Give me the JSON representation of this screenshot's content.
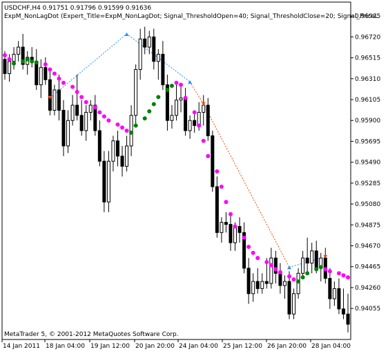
{
  "header": {
    "symbol_line": "USDCHF,H4  0.91751 0.91796 0.91599 0.91636",
    "indicator_line": "ExpM_NonLagDot (Expert_Title=ExpM_NonLagDot; Signal_ThresholdOpen=40; Signal_ThresholdClose=20; Signal_PriceL"
  },
  "footer": {
    "copyright": "MetaTrader 5, © 2001-2012 MetaQuotes Software Corp."
  },
  "colors": {
    "bull_dot": "#008000",
    "bear_dot": "#ff00ff",
    "buy_arrow": "#1e90ff",
    "sell_arrow": "#ff4500",
    "candle_bear": "#000000",
    "candle_bull": "#ffffff"
  },
  "chart_data": {
    "type": "candlestick",
    "ylim": [
      0.93954,
      0.97028
    ],
    "y_ticks": [
      "0.96925",
      "0.96720",
      "0.96515",
      "0.96310",
      "0.96105",
      "0.95900",
      "0.95695",
      "0.95490",
      "0.95285",
      "0.95080",
      "0.94875",
      "0.94670",
      "0.94465",
      "0.94260",
      "0.94055"
    ],
    "x_ticks": [
      "14 Jan 2011",
      "18 Jan 04:00",
      "19 Jan 12:00",
      "20 Jan 20:00",
      "24 Jan 04:00",
      "25 Jan 12:00",
      "26 Jan 20:00",
      "28 Jan 04:00"
    ],
    "candles": [
      [
        0.965,
        0.9658,
        0.963,
        0.9636
      ],
      [
        0.9636,
        0.9655,
        0.9628,
        0.9648
      ],
      [
        0.9648,
        0.9662,
        0.964,
        0.9655
      ],
      [
        0.9655,
        0.9668,
        0.9648,
        0.9662
      ],
      [
        0.9662,
        0.9675,
        0.964,
        0.9645
      ],
      [
        0.9645,
        0.9658,
        0.9635,
        0.9652
      ],
      [
        0.9652,
        0.9662,
        0.9642,
        0.9648
      ],
      [
        0.9648,
        0.966,
        0.962,
        0.9625
      ],
      [
        0.9625,
        0.965,
        0.9612,
        0.9642
      ],
      [
        0.9642,
        0.9652,
        0.9625,
        0.963
      ],
      [
        0.963,
        0.964,
        0.9595,
        0.96
      ],
      [
        0.96,
        0.9625,
        0.9595,
        0.962
      ],
      [
        0.962,
        0.9635,
        0.959,
        0.96
      ],
      [
        0.96,
        0.961,
        0.9555,
        0.9565
      ],
      [
        0.9565,
        0.96,
        0.9558,
        0.959
      ],
      [
        0.959,
        0.9615,
        0.9585,
        0.9605
      ],
      [
        0.9605,
        0.9635,
        0.959,
        0.9595
      ],
      [
        0.9595,
        0.961,
        0.9575,
        0.958
      ],
      [
        0.958,
        0.9605,
        0.957,
        0.9598
      ],
      [
        0.9598,
        0.961,
        0.959,
        0.9605
      ],
      [
        0.9605,
        0.9615,
        0.9575,
        0.958
      ],
      [
        0.958,
        0.959,
        0.9545,
        0.955
      ],
      [
        0.955,
        0.956,
        0.95,
        0.951
      ],
      [
        0.951,
        0.956,
        0.95,
        0.955
      ],
      [
        0.955,
        0.9575,
        0.954,
        0.957
      ],
      [
        0.957,
        0.958,
        0.9545,
        0.9555
      ],
      [
        0.9555,
        0.9565,
        0.9535,
        0.9545
      ],
      [
        0.9545,
        0.9575,
        0.954,
        0.9565
      ],
      [
        0.9565,
        0.9605,
        0.9555,
        0.9595
      ],
      [
        0.9595,
        0.9645,
        0.9585,
        0.964
      ],
      [
        0.964,
        0.968,
        0.963,
        0.967
      ],
      [
        0.967,
        0.9682,
        0.9655,
        0.9662
      ],
      [
        0.9662,
        0.9678,
        0.9655,
        0.9672
      ],
      [
        0.9672,
        0.968,
        0.964,
        0.9648
      ],
      [
        0.9648,
        0.966,
        0.963,
        0.9655
      ],
      [
        0.9655,
        0.9668,
        0.962,
        0.9625
      ],
      [
        0.9625,
        0.9635,
        0.958,
        0.959
      ],
      [
        0.959,
        0.9605,
        0.9582,
        0.9595
      ],
      [
        0.9595,
        0.9625,
        0.959,
        0.961
      ],
      [
        0.961,
        0.9625,
        0.9598,
        0.9612
      ],
      [
        0.9612,
        0.9622,
        0.9575,
        0.958
      ],
      [
        0.958,
        0.9595,
        0.9572,
        0.959
      ],
      [
        0.959,
        0.96,
        0.9578,
        0.9585
      ],
      [
        0.9585,
        0.9608,
        0.958,
        0.9598
      ],
      [
        0.9598,
        0.9615,
        0.9585,
        0.9605
      ],
      [
        0.9605,
        0.9612,
        0.957,
        0.9575
      ],
      [
        0.9575,
        0.958,
        0.952,
        0.9525
      ],
      [
        0.9525,
        0.9535,
        0.9475,
        0.948
      ],
      [
        0.948,
        0.9495,
        0.947,
        0.949
      ],
      [
        0.949,
        0.95,
        0.948,
        0.9488
      ],
      [
        0.9488,
        0.95,
        0.9462,
        0.947
      ],
      [
        0.947,
        0.949,
        0.9462,
        0.9486
      ],
      [
        0.9486,
        0.9495,
        0.947,
        0.948
      ],
      [
        0.948,
        0.949,
        0.944,
        0.9445
      ],
      [
        0.9445,
        0.9455,
        0.941,
        0.942
      ],
      [
        0.942,
        0.944,
        0.9412,
        0.9432
      ],
      [
        0.9432,
        0.9445,
        0.942,
        0.9425
      ],
      [
        0.9425,
        0.944,
        0.942,
        0.9432
      ],
      [
        0.9432,
        0.9455,
        0.9425,
        0.943
      ],
      [
        0.943,
        0.9465,
        0.9425,
        0.9455
      ],
      [
        0.9455,
        0.9462,
        0.943,
        0.944
      ],
      [
        0.944,
        0.945,
        0.942,
        0.9428
      ],
      [
        0.9428,
        0.9438,
        0.9415,
        0.9432
      ],
      [
        0.9432,
        0.9442,
        0.9395,
        0.94
      ],
      [
        0.94,
        0.9425,
        0.9395,
        0.942
      ],
      [
        0.942,
        0.9445,
        0.9415,
        0.944
      ],
      [
        0.944,
        0.9462,
        0.9435,
        0.9455
      ],
      [
        0.9455,
        0.9475,
        0.944,
        0.945
      ],
      [
        0.945,
        0.947,
        0.944,
        0.9462
      ],
      [
        0.9462,
        0.9472,
        0.944,
        0.9445
      ],
      [
        0.9445,
        0.946,
        0.9432,
        0.9455
      ],
      [
        0.9455,
        0.9465,
        0.943,
        0.9435
      ],
      [
        0.9435,
        0.9445,
        0.9405,
        0.9415
      ],
      [
        0.9415,
        0.9432,
        0.9408,
        0.9425
      ],
      [
        0.9425,
        0.9435,
        0.94,
        0.9405
      ],
      [
        0.9405,
        0.9425,
        0.9395,
        0.94
      ],
      [
        0.94,
        0.942,
        0.9382,
        0.939
      ]
    ],
    "dot_series": [
      [
        0.9654,
        "bear"
      ],
      [
        0.965,
        "bear"
      ],
      [
        0.9646,
        "bull"
      ],
      [
        0.9648,
        "bull"
      ],
      [
        0.965,
        "bull"
      ],
      [
        0.9648,
        "bull"
      ],
      [
        0.9647,
        "bull"
      ],
      [
        0.9645,
        "bear"
      ],
      [
        0.964,
        "bear"
      ],
      [
        0.9636,
        "bear"
      ],
      [
        0.9631,
        "bear"
      ],
      [
        0.9627,
        "bear"
      ],
      [
        0.9623,
        "bear"
      ],
      [
        0.9618,
        "bear"
      ],
      [
        0.9613,
        "bear"
      ],
      [
        0.9608,
        "bear"
      ],
      [
        0.9603,
        "bear"
      ],
      [
        0.9598,
        "bear"
      ],
      [
        0.9594,
        "bear"
      ],
      [
        0.959,
        "bear"
      ],
      [
        0.9586,
        "bear"
      ],
      [
        0.9583,
        "bear"
      ],
      [
        0.958,
        "bear"
      ],
      [
        0.9578,
        "bull"
      ],
      [
        0.9585,
        "bull"
      ],
      [
        0.9592,
        "bull"
      ],
      [
        0.9599,
        "bull"
      ],
      [
        0.9606,
        "bull"
      ],
      [
        0.9613,
        "bull"
      ],
      [
        0.962,
        "bull"
      ],
      [
        0.9624,
        "bull"
      ],
      [
        0.9627,
        "bear"
      ],
      [
        0.9625,
        "bear"
      ],
      [
        0.9612,
        "bear"
      ],
      [
        0.9598,
        "bear"
      ],
      [
        0.9585,
        "bear"
      ],
      [
        0.957,
        "bear"
      ],
      [
        0.9555,
        "bear"
      ],
      [
        0.954,
        "bear"
      ],
      [
        0.9525,
        "bear"
      ],
      [
        0.951,
        "bear"
      ],
      [
        0.9498,
        "bear"
      ],
      [
        0.9486,
        "bear"
      ],
      [
        0.9475,
        "bear"
      ],
      [
        0.9466,
        "bear"
      ],
      [
        0.946,
        "bear"
      ],
      [
        0.9455,
        "bear"
      ],
      [
        0.9451,
        "bear"
      ],
      [
        0.9448,
        "bear"
      ],
      [
        0.9444,
        "bear"
      ],
      [
        0.9441,
        "bear"
      ],
      [
        0.9437,
        "bear"
      ],
      [
        0.9434,
        "bear"
      ],
      [
        0.9432,
        "bull"
      ],
      [
        0.9436,
        "bull"
      ],
      [
        0.944,
        "bull"
      ],
      [
        0.9444,
        "bull"
      ],
      [
        0.9446,
        "bull"
      ],
      [
        0.9444,
        "bear"
      ],
      [
        0.9442,
        "bear"
      ],
      [
        0.944,
        "bear"
      ],
      [
        0.9438,
        "bear"
      ],
      [
        0.9436,
        "bear"
      ]
    ],
    "signals": [
      {
        "bar": 10,
        "type": "sell",
        "price": 0.9612
      },
      {
        "bar": 27,
        "type": "buy",
        "price": 0.9675
      },
      {
        "bar": 41,
        "type": "buy",
        "price": 0.9628
      },
      {
        "bar": 44,
        "type": "sell",
        "price": 0.9606
      },
      {
        "bar": 63,
        "type": "buy",
        "price": 0.9446
      },
      {
        "bar": 71,
        "type": "sell",
        "price": 0.9456
      }
    ],
    "signal_lines": [
      [
        10,
        27,
        "buy"
      ],
      [
        27,
        41,
        "buy"
      ],
      [
        41,
        44,
        "sell"
      ],
      [
        44,
        63,
        "sell"
      ],
      [
        63,
        71,
        "buy"
      ]
    ]
  }
}
